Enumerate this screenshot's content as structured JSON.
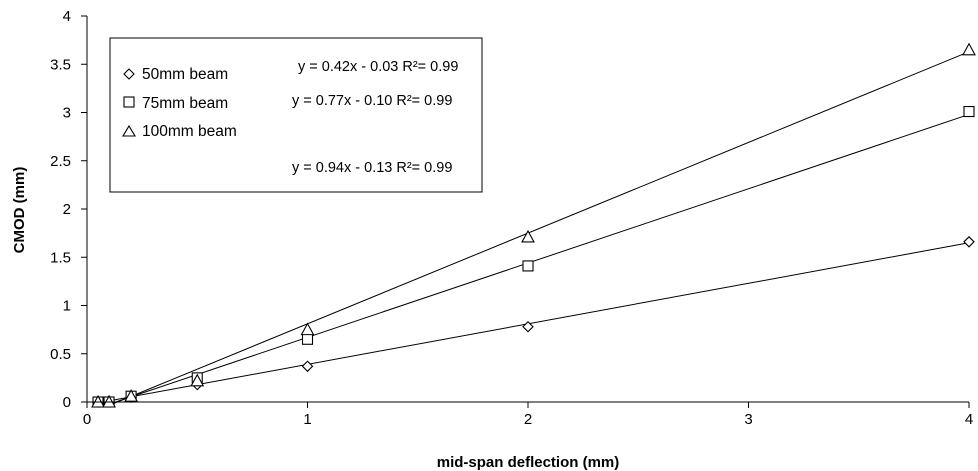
{
  "chart_data": {
    "type": "scatter",
    "xlabel": "mid-span deflection (mm)",
    "ylabel": "CMOD (mm)",
    "xlim": [
      0,
      4
    ],
    "ylim": [
      0,
      4
    ],
    "x_ticks": [
      "0",
      "1",
      "2",
      "3",
      "4"
    ],
    "y_ticks": [
      "0",
      "0.5",
      "1",
      "1.5",
      "2",
      "2.5",
      "3",
      "3.5",
      "4"
    ],
    "x_tick_values": [
      0,
      1,
      2,
      3,
      4
    ],
    "y_tick_values": [
      0,
      0.5,
      1,
      1.5,
      2,
      2.5,
      3,
      3.5,
      4
    ],
    "grid": false,
    "legend_position": "top-left",
    "series": [
      {
        "name": "50mm beam",
        "marker": "diamond",
        "equation": "y = 0.42x - 0.03  R²= 0.99",
        "trend": {
          "slope": 0.42,
          "intercept": -0.03
        },
        "points": [
          [
            0.05,
            0.0
          ],
          [
            0.1,
            0.01
          ],
          [
            0.2,
            0.05
          ],
          [
            0.5,
            0.18
          ],
          [
            1,
            0.37
          ],
          [
            2,
            0.78
          ],
          [
            4,
            1.66
          ]
        ]
      },
      {
        "name": "75mm beam",
        "marker": "square",
        "equation": "y = 0.77x - 0.10  R²= 0.99",
        "trend": {
          "slope": 0.77,
          "intercept": -0.1
        },
        "points": [
          [
            0.05,
            0.0
          ],
          [
            0.1,
            0.0
          ],
          [
            0.2,
            0.06
          ],
          [
            0.5,
            0.25
          ],
          [
            1,
            0.65
          ],
          [
            2,
            1.41
          ],
          [
            4,
            3.01
          ]
        ]
      },
      {
        "name": "100mm beam",
        "marker": "triangle",
        "equation": "y = 0.94x - 0.13  R²= 0.99",
        "trend": {
          "slope": 0.94,
          "intercept": -0.13
        },
        "points": [
          [
            0.05,
            0.0
          ],
          [
            0.1,
            0.0
          ],
          [
            0.2,
            0.06
          ],
          [
            0.5,
            0.22
          ],
          [
            1,
            0.75
          ],
          [
            2,
            1.71
          ],
          [
            4,
            3.65
          ]
        ]
      }
    ]
  }
}
